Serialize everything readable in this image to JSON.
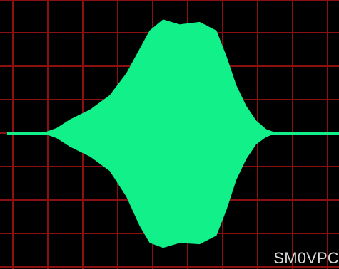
{
  "chart_data": {
    "type": "area",
    "title": "",
    "xlabel": "",
    "ylabel": "",
    "grid": true,
    "colors": {
      "background": "#000000",
      "grid": "#8b1010",
      "trace": "#12f08a",
      "text": "#d9d9d9"
    },
    "watermark": "SM0VPC",
    "x": [
      0.0,
      0.11,
      0.15,
      0.19,
      0.25,
      0.31,
      0.36,
      0.4,
      0.43,
      0.47,
      0.52,
      0.58,
      0.63,
      0.66,
      0.69,
      0.72,
      0.75,
      0.78,
      0.81,
      1.0
    ],
    "upper": [
      0.0,
      0.0,
      0.04,
      0.11,
      0.19,
      0.31,
      0.49,
      0.69,
      0.84,
      0.93,
      0.89,
      0.91,
      0.84,
      0.63,
      0.39,
      0.22,
      0.1,
      0.03,
      0.0,
      0.0
    ],
    "lower": [
      0.0,
      0.0,
      -0.04,
      -0.11,
      -0.19,
      -0.31,
      -0.52,
      -0.76,
      -0.9,
      -0.94,
      -0.9,
      -0.91,
      -0.84,
      -0.63,
      -0.38,
      -0.21,
      -0.09,
      -0.03,
      0.0,
      0.0
    ]
  }
}
